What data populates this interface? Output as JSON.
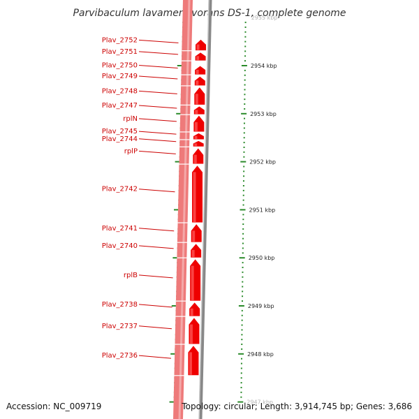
{
  "title": "Parvibaculum lavamentivorans DS-1, complete genome",
  "accession": "Accession: NC_009719",
  "topology": "Topology: circular; Length: 3,914,745 bp; Genes: 3,686",
  "genes": [
    {
      "label": "Plav_2752",
      "start_kbp": 2954.31,
      "end_kbp": 2954.55
    },
    {
      "label": "Plav_2751",
      "start_kbp": 2954.1,
      "end_kbp": 2954.28
    },
    {
      "label": "Plav_2750",
      "start_kbp": 2953.81,
      "end_kbp": 2954.0
    },
    {
      "label": "Plav_2749",
      "start_kbp": 2953.58,
      "end_kbp": 2953.78
    },
    {
      "label": "Plav_2748",
      "start_kbp": 2953.18,
      "end_kbp": 2953.56
    },
    {
      "label": "Plav_2747",
      "start_kbp": 2952.98,
      "end_kbp": 2953.16
    },
    {
      "label": "rplN",
      "start_kbp": 2952.62,
      "end_kbp": 2952.97
    },
    {
      "label": "Plav_2745",
      "start_kbp": 2952.46,
      "end_kbp": 2952.6
    },
    {
      "label": "Plav_2744",
      "start_kbp": 2952.31,
      "end_kbp": 2952.44
    },
    {
      "label": "rplP",
      "start_kbp": 2951.95,
      "end_kbp": 2952.29
    },
    {
      "label": "Plav_2742",
      "start_kbp": 2950.73,
      "end_kbp": 2951.93
    },
    {
      "label": "Plav_2741",
      "start_kbp": 2950.32,
      "end_kbp": 2950.71
    },
    {
      "label": "Plav_2740",
      "start_kbp": 2950.0,
      "end_kbp": 2950.3
    },
    {
      "label": "rplB",
      "start_kbp": 2949.1,
      "end_kbp": 2949.98
    },
    {
      "label": "Plav_2738",
      "start_kbp": 2948.78,
      "end_kbp": 2949.08
    },
    {
      "label": "Plav_2737",
      "start_kbp": 2948.2,
      "end_kbp": 2948.76
    },
    {
      "label": "Plav_2736",
      "start_kbp": 2947.55,
      "end_kbp": 2948.18
    }
  ],
  "scale": {
    "labeled_ticks": [
      2955,
      2954,
      2953,
      2952,
      2951,
      2950,
      2949,
      2948,
      2947
    ],
    "tick_labels": [
      "2955 kbp",
      "2954 kbp",
      "2953 kbp",
      "2952 kbp",
      "2951 kbp",
      "2950 kbp",
      "2949 kbp",
      "2948 kbp",
      "2947 kbp"
    ],
    "minor_interval_kbp": 0.1,
    "range_kbp": [
      2947,
      2955
    ]
  },
  "colors": {
    "gene": "#ee0000",
    "gene_light": "#ff6060",
    "feature_band": "#ee7a7a",
    "backbone": "#888888",
    "ticks": "#2a8a2a",
    "label": "#cc0000"
  }
}
